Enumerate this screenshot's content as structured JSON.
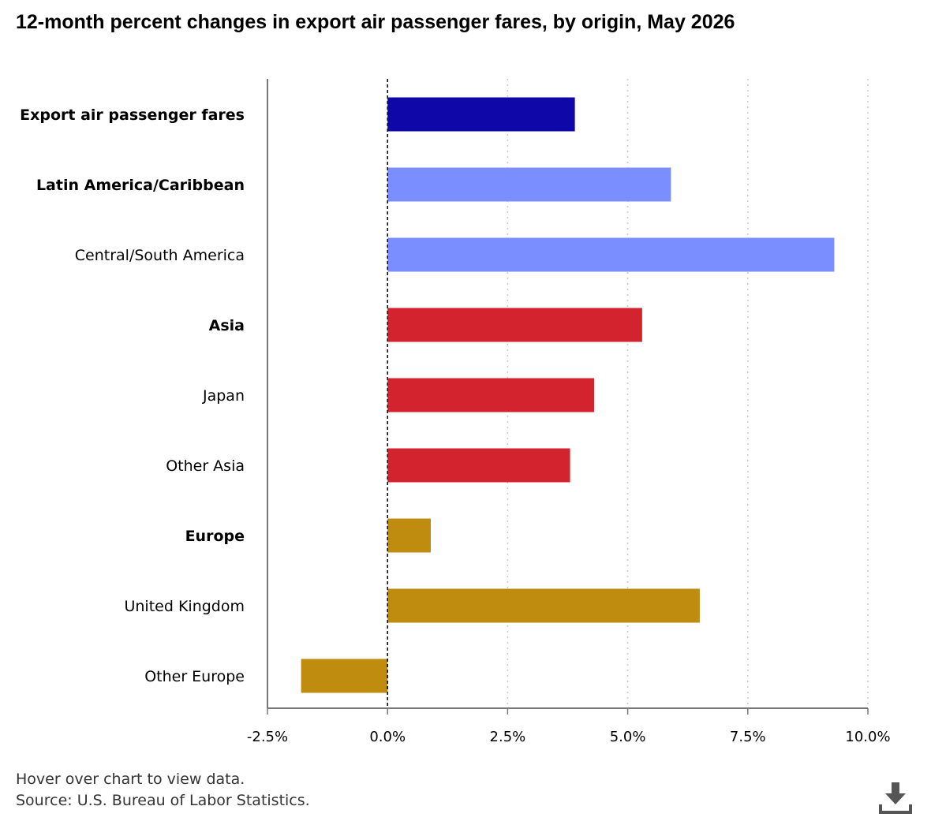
{
  "title": "12-month percent changes in export air passenger fares, by origin, May 2026",
  "footer": {
    "hint": "Hover over chart to view data.",
    "source": "Source: U.S. Bureau of Labor Statistics."
  },
  "icons": {
    "download": "download-icon"
  },
  "colors": {
    "total": "#1007a8",
    "latin_america": "#7b8eff",
    "asia": "#d2232e",
    "europe": "#bf8c0f",
    "axis": "#777777",
    "grid": "#c8c8c8",
    "zero_line": "#000000"
  },
  "chart_data": {
    "type": "bar",
    "orientation": "horizontal",
    "categories": [
      "Export air passenger fares",
      "Latin America/Caribbean",
      "Central/South America",
      "Asia",
      "Japan",
      "Other Asia",
      "Europe",
      "United Kingdom",
      "Other Europe"
    ],
    "bold_categories": [
      "Export air passenger fares",
      "Latin America/Caribbean",
      "Asia",
      "Europe"
    ],
    "values": [
      3.9,
      5.9,
      9.3,
      5.3,
      4.3,
      3.8,
      0.9,
      6.5,
      -1.8
    ],
    "color_groups": [
      "total",
      "latin_america",
      "latin_america",
      "asia",
      "asia",
      "asia",
      "europe",
      "europe",
      "europe"
    ],
    "xlim": [
      -2.5,
      10.0
    ],
    "x_ticks": [
      -2.5,
      0.0,
      2.5,
      5.0,
      7.5,
      10.0
    ],
    "x_tick_labels": [
      "-2.5%",
      "0.0%",
      "2.5%",
      "5.0%",
      "7.5%",
      "10.0%"
    ],
    "grid": "vertical dotted",
    "title": "12-month percent changes in export air passenger fares, by origin, May 2026",
    "xlabel": "",
    "ylabel": ""
  }
}
